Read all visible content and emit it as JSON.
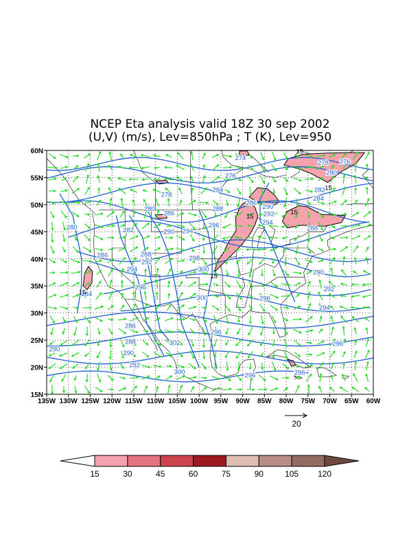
{
  "title": {
    "line1": "NCEP Eta analysis valid 18Z 30 sep 2002",
    "line2": "(U,V) (m/s), Lev=850hPa ; T (K), Lev=950"
  },
  "map": {
    "lon_min": -135,
    "lon_max": -60,
    "lat_min": 15,
    "lat_max": 60,
    "x_ticks": [
      "135W",
      "130W",
      "125W",
      "120W",
      "115W",
      "110W",
      "105W",
      "100W",
      "95W",
      "90W",
      "85W",
      "80W",
      "75W",
      "70W",
      "65W",
      "60W"
    ],
    "y_ticks": [
      "15N",
      "20N",
      "25N",
      "30N",
      "35N",
      "40N",
      "45N",
      "50N",
      "55N",
      "60N"
    ],
    "grid": "dotted",
    "vector_color": "#22dd22",
    "contour_color": "#1e5fd0",
    "shade_color": "#f4a3ae"
  },
  "temperature_contours": [
    {
      "label": "274",
      "lon": -90.5,
      "lat": 58.6
    },
    {
      "label": "276",
      "lon": -92.8,
      "lat": 55.3
    },
    {
      "label": "276",
      "lon": -66.5,
      "lat": 57.9
    },
    {
      "label": "278",
      "lon": -71.5,
      "lat": 57.7
    },
    {
      "label": "278",
      "lon": -107.5,
      "lat": 51.8
    },
    {
      "label": "280",
      "lon": -69.6,
      "lat": 55.9
    },
    {
      "label": "280",
      "lon": -111.4,
      "lat": 49.2
    },
    {
      "label": "280",
      "lon": -129.2,
      "lat": 45.8
    },
    {
      "label": "282",
      "lon": -72.3,
      "lat": 52.7
    },
    {
      "label": "282",
      "lon": -116.2,
      "lat": 45.3
    },
    {
      "label": "284",
      "lon": -72.6,
      "lat": 51.1
    },
    {
      "label": "284",
      "lon": -95.7,
      "lat": 52.7
    },
    {
      "label": "284",
      "lon": -125.8,
      "lat": 33.5
    },
    {
      "label": "286",
      "lon": -88.0,
      "lat": 50.3
    },
    {
      "label": "286",
      "lon": -106.9,
      "lat": 48.4
    },
    {
      "label": "286",
      "lon": -122.2,
      "lat": 40.7
    },
    {
      "label": "286",
      "lon": -115.8,
      "lat": 27.6
    },
    {
      "label": "288",
      "lon": -95.7,
      "lat": 49.2
    },
    {
      "label": "288",
      "lon": -74.0,
      "lat": 45.6
    },
    {
      "label": "288",
      "lon": -112.2,
      "lat": 40.8
    },
    {
      "label": "288",
      "lon": -115.8,
      "lat": 24.7
    },
    {
      "label": "290",
      "lon": -84.2,
      "lat": 49.6
    },
    {
      "label": "290",
      "lon": -106.9,
      "lat": 45.0
    },
    {
      "label": "290",
      "lon": -72.6,
      "lat": 37.5
    },
    {
      "label": "290",
      "lon": -116.2,
      "lat": 22.6
    },
    {
      "label": "290",
      "lon": -133.2,
      "lat": 23.3
    },
    {
      "label": "292",
      "lon": -84.0,
      "lat": 48.3
    },
    {
      "label": "292",
      "lon": -112.0,
      "lat": 39.4
    },
    {
      "label": "292",
      "lon": -70.2,
      "lat": 34.4
    },
    {
      "label": "292",
      "lon": -114.8,
      "lat": 20.4
    },
    {
      "label": "294",
      "lon": -84.3,
      "lat": 46.7
    },
    {
      "label": "294",
      "lon": -102.6,
      "lat": 45.1
    },
    {
      "label": "294",
      "lon": -115.4,
      "lat": 38.1
    },
    {
      "label": "294",
      "lon": -71.2,
      "lat": 31.0
    },
    {
      "label": "296",
      "lon": -96.6,
      "lat": 46.2
    },
    {
      "label": "296",
      "lon": -113.5,
      "lat": 34.7
    },
    {
      "label": "296",
      "lon": -84.9,
      "lat": 32.7
    },
    {
      "label": "296",
      "lon": -96.1,
      "lat": 26.5
    },
    {
      "label": "296",
      "lon": -88.3,
      "lat": 18.5
    },
    {
      "label": "296",
      "lon": -68.2,
      "lat": 24.3
    },
    {
      "label": "296",
      "lon": -76.9,
      "lat": 19.0
    },
    {
      "label": "298",
      "lon": -101.1,
      "lat": 40.1
    },
    {
      "label": "300",
      "lon": -99.0,
      "lat": 38.1
    },
    {
      "label": "300",
      "lon": -99.3,
      "lat": 32.8
    },
    {
      "label": "300",
      "lon": -104.5,
      "lat": 19.1
    },
    {
      "label": "302",
      "lon": -105.6,
      "lat": 24.5
    }
  ],
  "wind_labels": [
    {
      "label": "15",
      "lon": -76.9,
      "lat": 59.8
    },
    {
      "label": "15",
      "lon": -70.3,
      "lat": 53.1
    },
    {
      "label": "15",
      "lon": -88.3,
      "lat": 47.8
    },
    {
      "label": "15",
      "lon": -78.2,
      "lat": 48.6
    },
    {
      "label": "15",
      "lon": -96.6,
      "lat": 36.8
    },
    {
      "label": "15",
      "lon": -126.8,
      "lat": 33.8
    }
  ],
  "vector_reference": {
    "value": "20"
  },
  "colorbar": {
    "labels": [
      "15",
      "30",
      "45",
      "60",
      "75",
      "90",
      "105",
      "120"
    ],
    "colors": [
      "#ffffff",
      "#f4a3ae",
      "#e5747f",
      "#cd434d",
      "#9c1b21",
      "#ddbcb1",
      "#b68c84",
      "#936b61",
      "#6f4a40"
    ]
  }
}
